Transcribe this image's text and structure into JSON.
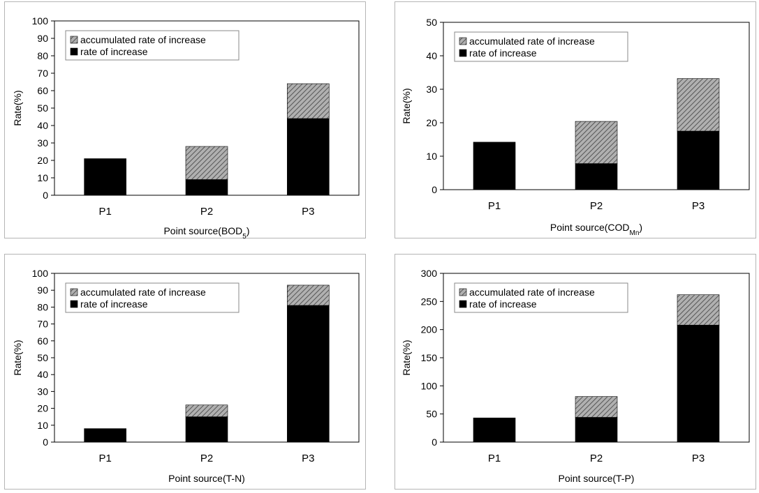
{
  "chart_data": [
    {
      "type": "bar",
      "stacked": true,
      "categories": [
        "P1",
        "P2",
        "P3"
      ],
      "series": [
        {
          "name": "rate of increase",
          "values": [
            21,
            9,
            44
          ],
          "color": "#000000"
        },
        {
          "name": "accumulated rate of increase",
          "values": [
            0,
            19,
            20
          ],
          "color": "#8a8a8a",
          "pattern": "diagonal-hatch"
        }
      ],
      "xlabel": "Point source(BOD",
      "xlabel_sub": "5",
      "xlabel_end": ")",
      "ylabel": "Rate(%)",
      "ylim": [
        0,
        100
      ],
      "yticks": [
        0,
        10,
        20,
        30,
        40,
        50,
        60,
        70,
        80,
        90,
        100
      ],
      "grid": false,
      "legend": "top-left"
    },
    {
      "type": "bar",
      "stacked": true,
      "categories": [
        "P1",
        "P2",
        "P3"
      ],
      "series": [
        {
          "name": "rate of increase",
          "values": [
            14.2,
            7.8,
            17.5
          ],
          "color": "#000000"
        },
        {
          "name": "accumulated rate of increase",
          "values": [
            0,
            12.6,
            15.7
          ],
          "color": "#8a8a8a",
          "pattern": "diagonal-hatch"
        }
      ],
      "xlabel": "Point source(COD",
      "xlabel_sub": "Mn",
      "xlabel_end": ")",
      "ylabel": "Rate(%)",
      "ylim": [
        0,
        50
      ],
      "yticks": [
        0,
        10,
        20,
        30,
        40,
        50
      ],
      "grid": false,
      "legend": "top-left"
    },
    {
      "type": "bar",
      "stacked": true,
      "categories": [
        "P1",
        "P2",
        "P3"
      ],
      "series": [
        {
          "name": "rate of increase",
          "values": [
            8,
            15,
            81
          ],
          "color": "#000000"
        },
        {
          "name": "accumulated rate of increase",
          "values": [
            0,
            7,
            12
          ],
          "color": "#8a8a8a",
          "pattern": "diagonal-hatch"
        }
      ],
      "xlabel": "Point source(T-N)",
      "xlabel_sub": "",
      "xlabel_end": "",
      "ylabel": "Rate(%)",
      "ylim": [
        0,
        100
      ],
      "yticks": [
        0,
        10,
        20,
        30,
        40,
        50,
        60,
        70,
        80,
        90,
        100
      ],
      "grid": false,
      "legend": "top-left"
    },
    {
      "type": "bar",
      "stacked": true,
      "categories": [
        "P1",
        "P2",
        "P3"
      ],
      "series": [
        {
          "name": "rate of increase",
          "values": [
            43,
            44,
            208
          ],
          "color": "#000000"
        },
        {
          "name": "accumulated rate of increase",
          "values": [
            0,
            37,
            54
          ],
          "color": "#8a8a8a",
          "pattern": "diagonal-hatch"
        }
      ],
      "xlabel": "Point source(T-P)",
      "xlabel_sub": "",
      "xlabel_end": "",
      "ylabel": "Rate(%)",
      "ylim": [
        0,
        300
      ],
      "yticks": [
        0,
        50,
        100,
        150,
        200,
        250,
        300
      ],
      "grid": false,
      "legend": "top-left"
    }
  ]
}
